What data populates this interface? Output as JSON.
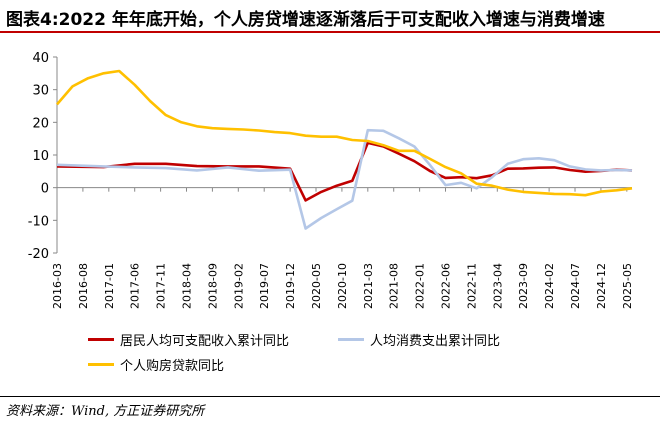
{
  "title": "图表4:2022 年年底开始，个人房贷增速逐渐落后于可支配收入增速与消费增速",
  "source": "资料来源：Wind, 方正证券研究所",
  "colors": {
    "income": "#c00000",
    "consumption": "#b4c7e7",
    "mortgage": "#ffc000",
    "title_rule": "#c00000"
  },
  "chart_data": {
    "type": "line",
    "ylim": [
      -20,
      40
    ],
    "yticks": [
      -20,
      -10,
      0,
      10,
      20,
      30,
      40
    ],
    "x_start": "2016-03",
    "x_end": "2025-06",
    "xticks": [
      "2016-03",
      "2016-08",
      "2017-01",
      "2017-06",
      "2017-11",
      "2018-04",
      "2018-09",
      "2019-02",
      "2019-07",
      "2019-12",
      "2020-05",
      "2020-10",
      "2021-03",
      "2021-08",
      "2022-01",
      "2022-06",
      "2022-11",
      "2023-04",
      "2023-09",
      "2024-02",
      "2024-07",
      "2024-12",
      "2025-05"
    ],
    "grid": false,
    "legend_position": "bottom",
    "series": [
      {
        "name": "居民人均可支配收入累计同比",
        "color": "#c00000",
        "points": [
          [
            "2016-03",
            6.5
          ],
          [
            "2016-12",
            6.3
          ],
          [
            "2017-06",
            7.3
          ],
          [
            "2017-12",
            7.3
          ],
          [
            "2018-06",
            6.6
          ],
          [
            "2018-12",
            6.5
          ],
          [
            "2019-06",
            6.5
          ],
          [
            "2019-12",
            5.8
          ],
          [
            "2020-03",
            -3.9
          ],
          [
            "2020-06",
            -1.3
          ],
          [
            "2020-09",
            0.6
          ],
          [
            "2020-12",
            2.1
          ],
          [
            "2021-03",
            13.7
          ],
          [
            "2021-06",
            12.6
          ],
          [
            "2021-09",
            10.4
          ],
          [
            "2021-12",
            8.1
          ],
          [
            "2022-03",
            5.1
          ],
          [
            "2022-06",
            3.0
          ],
          [
            "2022-09",
            3.2
          ],
          [
            "2022-12",
            2.9
          ],
          [
            "2023-03",
            3.8
          ],
          [
            "2023-06",
            5.8
          ],
          [
            "2023-09",
            5.9
          ],
          [
            "2023-12",
            6.1
          ],
          [
            "2024-03",
            6.2
          ],
          [
            "2024-06",
            5.4
          ],
          [
            "2024-09",
            4.9
          ],
          [
            "2024-12",
            5.1
          ],
          [
            "2025-03",
            5.5
          ],
          [
            "2025-06",
            5.3
          ]
        ]
      },
      {
        "name": "人均消费支出累计同比",
        "color": "#b4c7e7",
        "points": [
          [
            "2016-03",
            7.0
          ],
          [
            "2016-12",
            6.5
          ],
          [
            "2017-06",
            6.2
          ],
          [
            "2017-12",
            6.0
          ],
          [
            "2018-06",
            5.3
          ],
          [
            "2018-12",
            6.2
          ],
          [
            "2019-06",
            5.2
          ],
          [
            "2019-12",
            5.5
          ],
          [
            "2020-03",
            -12.5
          ],
          [
            "2020-06",
            -9.3
          ],
          [
            "2020-09",
            -6.6
          ],
          [
            "2020-12",
            -4.0
          ],
          [
            "2021-03",
            17.6
          ],
          [
            "2021-06",
            17.4
          ],
          [
            "2021-09",
            15.1
          ],
          [
            "2021-12",
            12.6
          ],
          [
            "2022-03",
            6.9
          ],
          [
            "2022-06",
            0.8
          ],
          [
            "2022-09",
            1.5
          ],
          [
            "2022-12",
            -0.2
          ],
          [
            "2023-03",
            3.2
          ],
          [
            "2023-06",
            7.3
          ],
          [
            "2023-09",
            8.7
          ],
          [
            "2023-12",
            9.0
          ],
          [
            "2024-03",
            8.4
          ],
          [
            "2024-06",
            6.5
          ],
          [
            "2024-09",
            5.6
          ],
          [
            "2024-12",
            5.3
          ],
          [
            "2025-03",
            5.4
          ],
          [
            "2025-06",
            5.3
          ]
        ]
      },
      {
        "name": "个人购房贷款同比",
        "color": "#ffc000",
        "points": [
          [
            "2016-03",
            25.5
          ],
          [
            "2016-06",
            31.0
          ],
          [
            "2016-09",
            33.5
          ],
          [
            "2016-12",
            35.0
          ],
          [
            "2017-03",
            35.7
          ],
          [
            "2017-06",
            31.5
          ],
          [
            "2017-09",
            26.5
          ],
          [
            "2017-12",
            22.2
          ],
          [
            "2018-03",
            20.0
          ],
          [
            "2018-06",
            18.8
          ],
          [
            "2018-09",
            18.2
          ],
          [
            "2018-12",
            18.0
          ],
          [
            "2019-03",
            17.8
          ],
          [
            "2019-06",
            17.5
          ],
          [
            "2019-09",
            17.0
          ],
          [
            "2019-12",
            16.7
          ],
          [
            "2020-03",
            15.9
          ],
          [
            "2020-06",
            15.6
          ],
          [
            "2020-09",
            15.6
          ],
          [
            "2020-12",
            14.6
          ],
          [
            "2021-03",
            14.3
          ],
          [
            "2021-06",
            13.0
          ],
          [
            "2021-09",
            11.3
          ],
          [
            "2021-12",
            11.3
          ],
          [
            "2022-03",
            8.8
          ],
          [
            "2022-06",
            6.3
          ],
          [
            "2022-09",
            4.4
          ],
          [
            "2022-12",
            1.2
          ],
          [
            "2023-03",
            0.6
          ],
          [
            "2023-06",
            -0.6
          ],
          [
            "2023-09",
            -1.3
          ],
          [
            "2023-12",
            -1.6
          ],
          [
            "2024-03",
            -1.9
          ],
          [
            "2024-06",
            -2.0
          ],
          [
            "2024-09",
            -2.3
          ],
          [
            "2024-12",
            -1.2
          ],
          [
            "2025-03",
            -0.8
          ],
          [
            "2025-06",
            -0.2
          ]
        ]
      }
    ]
  }
}
